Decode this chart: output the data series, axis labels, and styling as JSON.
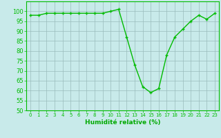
{
  "x": [
    0,
    1,
    2,
    3,
    4,
    5,
    6,
    7,
    8,
    9,
    10,
    11,
    12,
    13,
    14,
    15,
    16,
    17,
    18,
    19,
    20,
    21,
    22,
    23
  ],
  "y": [
    98,
    98,
    99,
    99,
    99,
    99,
    99,
    99,
    99,
    99,
    100,
    101,
    87,
    73,
    62,
    59,
    61,
    78,
    87,
    91,
    95,
    98,
    96,
    99
  ],
  "line_color": "#00bb00",
  "marker": "+",
  "background_color": "#c8eaea",
  "grid_color": "#99bbbb",
  "xlabel": "Humidité relative (%)",
  "ylim": [
    50,
    105
  ],
  "xlim": [
    -0.5,
    23.5
  ],
  "yticks": [
    50,
    55,
    60,
    65,
    70,
    75,
    80,
    85,
    90,
    95,
    100
  ],
  "xticks": [
    0,
    1,
    2,
    3,
    4,
    5,
    6,
    7,
    8,
    9,
    10,
    11,
    12,
    13,
    14,
    15,
    16,
    17,
    18,
    19,
    20,
    21,
    22,
    23
  ],
  "xlabel_color": "#00aa00",
  "line_width": 1.0,
  "marker_size": 3.5,
  "marker_edge_width": 1.0
}
